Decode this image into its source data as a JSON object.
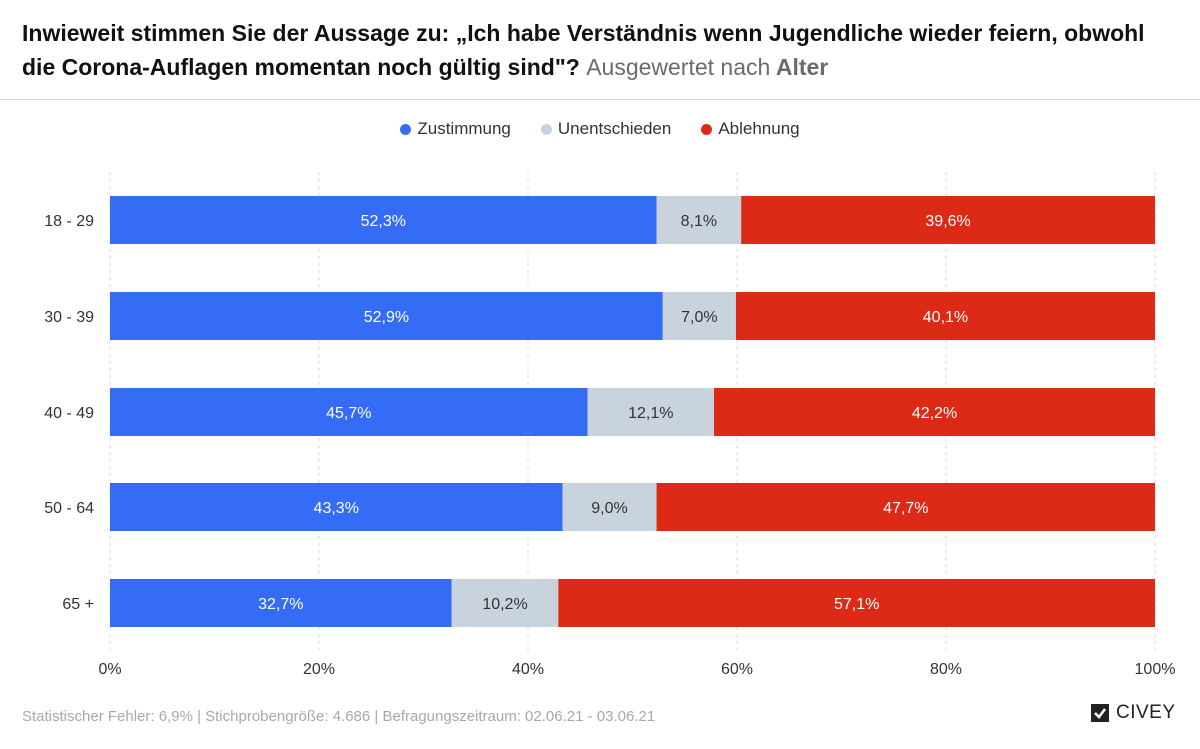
{
  "title": {
    "main": "Inwieweit stimmen Sie der Aussage zu: „Ich habe Verständnis wenn Jugendliche wieder feiern, obwohl die Corona-Auflagen momentan noch gültig sind\"?",
    "sub_prefix": "Ausgewertet nach",
    "sub_strong": "Alter"
  },
  "legend": [
    {
      "label": "Zustimmung",
      "color": "#356cf6"
    },
    {
      "label": "Unentschieden",
      "color": "#c8d3dd"
    },
    {
      "label": "Ablehnung",
      "color": "#dc2a16"
    }
  ],
  "chart_data": {
    "type": "bar",
    "orientation": "horizontal",
    "stacked": true,
    "categories": [
      "18 - 29",
      "30 - 39",
      "40 - 49",
      "50 - 64",
      "65 +"
    ],
    "series": [
      {
        "name": "Zustimmung",
        "color": "#356cf6",
        "values": [
          52.3,
          52.9,
          45.7,
          43.3,
          32.7
        ],
        "labels": [
          "52,3%",
          "52,9%",
          "45,7%",
          "43,3%",
          "32,7%"
        ]
      },
      {
        "name": "Unentschieden",
        "color": "#c8d3dd",
        "values": [
          8.1,
          7.0,
          12.1,
          9.0,
          10.2
        ],
        "labels": [
          "8,1%",
          "7,0%",
          "12,1%",
          "9,0%",
          "10,2%"
        ]
      },
      {
        "name": "Ablehnung",
        "color": "#dc2a16",
        "values": [
          39.6,
          40.1,
          42.2,
          47.7,
          57.1
        ],
        "labels": [
          "39,6%",
          "40,1%",
          "42,2%",
          "47,7%",
          "57,1%"
        ]
      }
    ],
    "xlim": [
      0,
      100
    ],
    "xticks": [
      "0%",
      "20%",
      "40%",
      "60%",
      "80%",
      "100%"
    ],
    "grid": true,
    "legend_position": "top-center"
  },
  "footer": {
    "text": "Statistischer Fehler: 6,9% | Stichprobengröße: 4.686 | Befragungszeitraum: 02.06.21 - 03.06.21"
  },
  "logo": {
    "text": "CIVEY"
  }
}
